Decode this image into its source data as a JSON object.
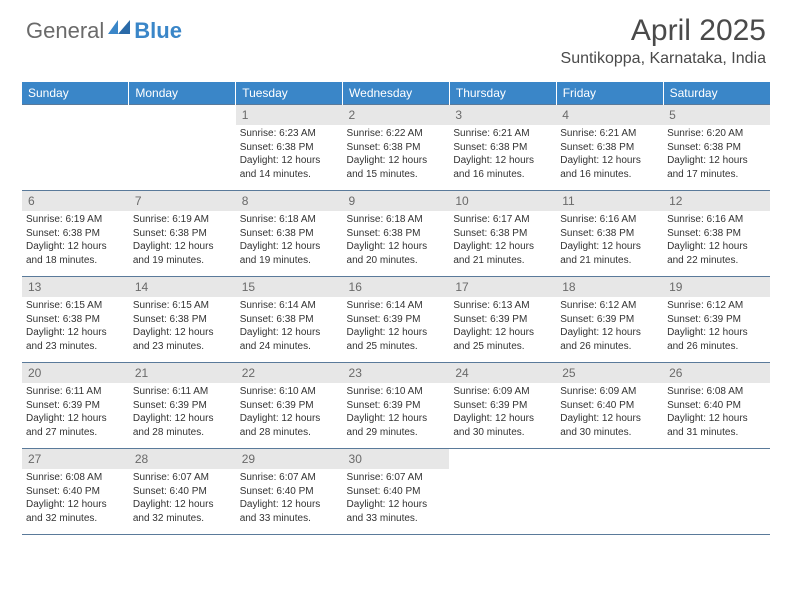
{
  "logo": {
    "general": "General",
    "blue": "Blue"
  },
  "title": "April 2025",
  "location": "Suntikoppa, Karnataka, India",
  "colors": {
    "header_bg": "#3a86c8",
    "header_text": "#ffffff",
    "daynum_bg": "#e7e7e7",
    "daynum_text": "#6a6a6a",
    "border": "#5a7a9a",
    "body_text": "#333333"
  },
  "weekdays": [
    "Sunday",
    "Monday",
    "Tuesday",
    "Wednesday",
    "Thursday",
    "Friday",
    "Saturday"
  ],
  "layout": {
    "first_weekday_index": 2,
    "days_in_month": 30
  },
  "days": {
    "1": {
      "sunrise": "6:23 AM",
      "sunset": "6:38 PM",
      "daylight": "12 hours and 14 minutes."
    },
    "2": {
      "sunrise": "6:22 AM",
      "sunset": "6:38 PM",
      "daylight": "12 hours and 15 minutes."
    },
    "3": {
      "sunrise": "6:21 AM",
      "sunset": "6:38 PM",
      "daylight": "12 hours and 16 minutes."
    },
    "4": {
      "sunrise": "6:21 AM",
      "sunset": "6:38 PM",
      "daylight": "12 hours and 16 minutes."
    },
    "5": {
      "sunrise": "6:20 AM",
      "sunset": "6:38 PM",
      "daylight": "12 hours and 17 minutes."
    },
    "6": {
      "sunrise": "6:19 AM",
      "sunset": "6:38 PM",
      "daylight": "12 hours and 18 minutes."
    },
    "7": {
      "sunrise": "6:19 AM",
      "sunset": "6:38 PM",
      "daylight": "12 hours and 19 minutes."
    },
    "8": {
      "sunrise": "6:18 AM",
      "sunset": "6:38 PM",
      "daylight": "12 hours and 19 minutes."
    },
    "9": {
      "sunrise": "6:18 AM",
      "sunset": "6:38 PM",
      "daylight": "12 hours and 20 minutes."
    },
    "10": {
      "sunrise": "6:17 AM",
      "sunset": "6:38 PM",
      "daylight": "12 hours and 21 minutes."
    },
    "11": {
      "sunrise": "6:16 AM",
      "sunset": "6:38 PM",
      "daylight": "12 hours and 21 minutes."
    },
    "12": {
      "sunrise": "6:16 AM",
      "sunset": "6:38 PM",
      "daylight": "12 hours and 22 minutes."
    },
    "13": {
      "sunrise": "6:15 AM",
      "sunset": "6:38 PM",
      "daylight": "12 hours and 23 minutes."
    },
    "14": {
      "sunrise": "6:15 AM",
      "sunset": "6:38 PM",
      "daylight": "12 hours and 23 minutes."
    },
    "15": {
      "sunrise": "6:14 AM",
      "sunset": "6:38 PM",
      "daylight": "12 hours and 24 minutes."
    },
    "16": {
      "sunrise": "6:14 AM",
      "sunset": "6:39 PM",
      "daylight": "12 hours and 25 minutes."
    },
    "17": {
      "sunrise": "6:13 AM",
      "sunset": "6:39 PM",
      "daylight": "12 hours and 25 minutes."
    },
    "18": {
      "sunrise": "6:12 AM",
      "sunset": "6:39 PM",
      "daylight": "12 hours and 26 minutes."
    },
    "19": {
      "sunrise": "6:12 AM",
      "sunset": "6:39 PM",
      "daylight": "12 hours and 26 minutes."
    },
    "20": {
      "sunrise": "6:11 AM",
      "sunset": "6:39 PM",
      "daylight": "12 hours and 27 minutes."
    },
    "21": {
      "sunrise": "6:11 AM",
      "sunset": "6:39 PM",
      "daylight": "12 hours and 28 minutes."
    },
    "22": {
      "sunrise": "6:10 AM",
      "sunset": "6:39 PM",
      "daylight": "12 hours and 28 minutes."
    },
    "23": {
      "sunrise": "6:10 AM",
      "sunset": "6:39 PM",
      "daylight": "12 hours and 29 minutes."
    },
    "24": {
      "sunrise": "6:09 AM",
      "sunset": "6:39 PM",
      "daylight": "12 hours and 30 minutes."
    },
    "25": {
      "sunrise": "6:09 AM",
      "sunset": "6:40 PM",
      "daylight": "12 hours and 30 minutes."
    },
    "26": {
      "sunrise": "6:08 AM",
      "sunset": "6:40 PM",
      "daylight": "12 hours and 31 minutes."
    },
    "27": {
      "sunrise": "6:08 AM",
      "sunset": "6:40 PM",
      "daylight": "12 hours and 32 minutes."
    },
    "28": {
      "sunrise": "6:07 AM",
      "sunset": "6:40 PM",
      "daylight": "12 hours and 32 minutes."
    },
    "29": {
      "sunrise": "6:07 AM",
      "sunset": "6:40 PM",
      "daylight": "12 hours and 33 minutes."
    },
    "30": {
      "sunrise": "6:07 AM",
      "sunset": "6:40 PM",
      "daylight": "12 hours and 33 minutes."
    }
  },
  "labels": {
    "sunrise": "Sunrise: ",
    "sunset": "Sunset: ",
    "daylight": "Daylight: "
  }
}
